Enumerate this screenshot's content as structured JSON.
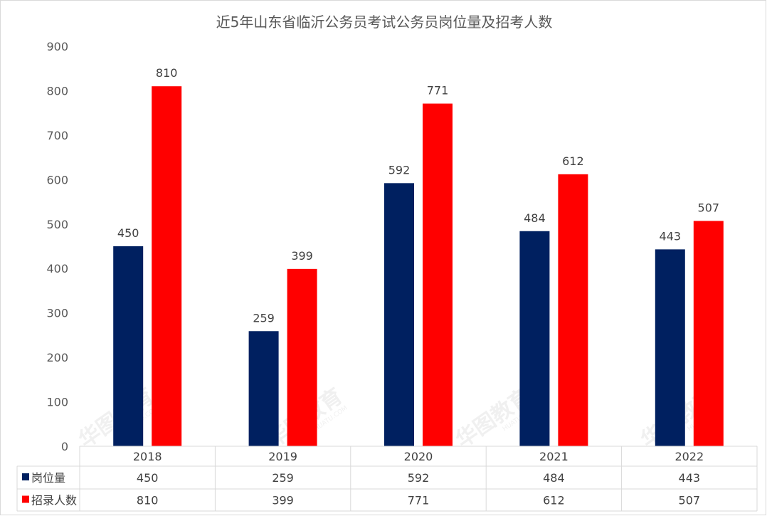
{
  "chart_data": {
    "type": "bar",
    "title": "近5年山东省临沂公务员考试公务员岗位量及招考人数",
    "categories": [
      "2018",
      "2019",
      "2020",
      "2021",
      "2022"
    ],
    "ylim": [
      0,
      900
    ],
    "yticks": [
      "0",
      "100",
      "200",
      "300",
      "400",
      "500",
      "600",
      "700",
      "800",
      "900"
    ],
    "grid": false,
    "legend": "data-table",
    "series": [
      {
        "name": "岗位量",
        "color": "#002060",
        "values": [
          450,
          259,
          592,
          484,
          443
        ]
      },
      {
        "name": "招录人数",
        "color": "#ff0000",
        "values": [
          810,
          399,
          771,
          612,
          507
        ]
      }
    ]
  },
  "watermark": {
    "text": "华图教育",
    "sub": "HUATU.COM"
  }
}
